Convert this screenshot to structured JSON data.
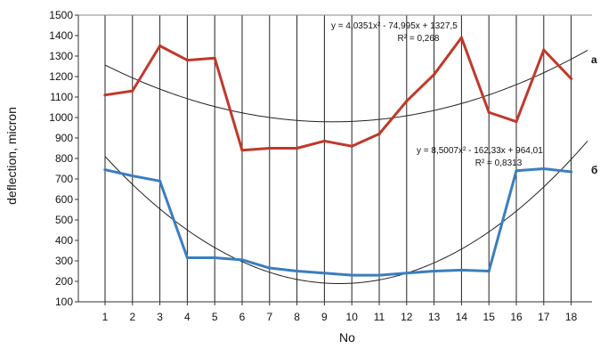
{
  "chart_data": {
    "type": "line",
    "xlabel": "No",
    "ylabel": "deflection, micron",
    "ylim": [
      100,
      1500
    ],
    "y_ticks": [
      100,
      200,
      300,
      400,
      500,
      600,
      700,
      800,
      900,
      1000,
      1100,
      1200,
      1300,
      1400,
      1500
    ],
    "categories": [
      "1",
      "2",
      "3",
      "4",
      "5",
      "6",
      "7",
      "8",
      "9",
      "10",
      "11",
      "12",
      "13",
      "14",
      "15",
      "16",
      "17",
      "18"
    ],
    "grid": "vertical",
    "series": [
      {
        "name": "a",
        "color": "#c0392b",
        "values": [
          1110,
          1130,
          1350,
          1280,
          1290,
          840,
          850,
          850,
          885,
          860,
          920,
          1080,
          1210,
          1390,
          1025,
          980,
          1330,
          1190
        ]
      },
      {
        "name": "б",
        "color": "#3a7ebf",
        "values": [
          745,
          715,
          690,
          315,
          315,
          305,
          265,
          250,
          240,
          230,
          230,
          240,
          250,
          255,
          250,
          740,
          750,
          735
        ]
      }
    ],
    "trendlines": [
      {
        "series": "a",
        "equation": "y = 4,0351x² - 74,995x + 1327,5",
        "r2": "R² = 0,268",
        "coefficients": [
          4.0351,
          -74.995,
          1327.5
        ],
        "color": "#222222"
      },
      {
        "series": "б",
        "equation": "y = 8,5007x² - 162,33x + 964,01",
        "r2": "R² = 0,8313",
        "coefficients": [
          8.5007,
          -162.33,
          964.01
        ],
        "color": "#222222"
      }
    ]
  }
}
